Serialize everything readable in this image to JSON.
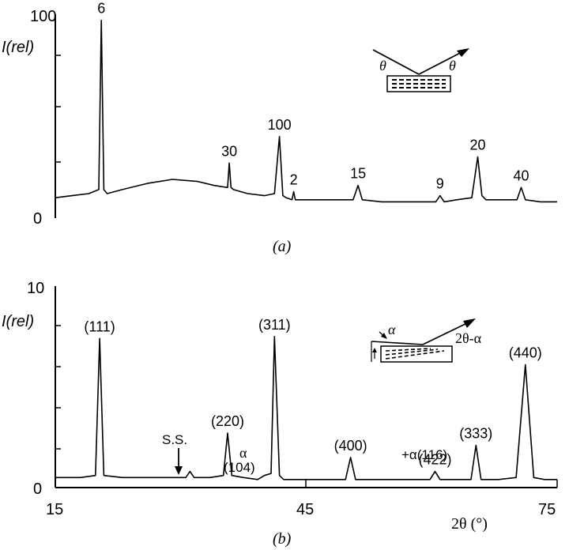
{
  "chart_data": [
    {
      "type": "line",
      "panel_label": "(a)",
      "ylabel": "I(rel)",
      "ylim": [
        0,
        100
      ],
      "y_ticks": [
        "0",
        "100"
      ],
      "xlim": [
        15,
        75
      ],
      "series": [
        {
          "x": [
            15,
            17,
            19,
            20.2,
            20.5,
            20.8,
            21.2,
            23,
            26,
            29,
            32,
            34,
            35.6,
            35.8,
            36,
            36.3,
            38,
            40,
            41.2,
            41.8,
            42.2,
            42.6,
            43.3,
            43.5,
            43.7,
            46,
            49,
            50.6,
            51.2,
            51.7,
            54,
            57,
            60.5,
            61,
            61.5,
            63,
            64.8,
            65.5,
            66,
            66.5,
            68,
            70.2,
            70.7,
            71.2,
            73,
            75
          ],
          "y": [
            10,
            11,
            12,
            14,
            97,
            14,
            12,
            14,
            17,
            19,
            18,
            16,
            15,
            27,
            15,
            14,
            12,
            11,
            12,
            40,
            11,
            10,
            9,
            13,
            9,
            9,
            9,
            9,
            16,
            9,
            8,
            8,
            8,
            11,
            8,
            9,
            10,
            30,
            11,
            9,
            9,
            9,
            15,
            9,
            8,
            8
          ]
        }
      ],
      "peak_labels": [
        {
          "x": 20.5,
          "y": 97,
          "text": "6"
        },
        {
          "x": 35.8,
          "y": 27,
          "text": "30"
        },
        {
          "x": 41.8,
          "y": 40,
          "text": "100"
        },
        {
          "x": 43.5,
          "y": 13,
          "text": "2"
        },
        {
          "x": 51.2,
          "y": 16,
          "text": "15"
        },
        {
          "x": 61,
          "y": 11,
          "text": "9"
        },
        {
          "x": 65.5,
          "y": 30,
          "text": "20"
        },
        {
          "x": 70.7,
          "y": 15,
          "text": "40"
        }
      ],
      "inset_labels": [
        "θ",
        "θ"
      ]
    },
    {
      "type": "line",
      "panel_label": "(b)",
      "ylabel": "I(rel)",
      "xlabel": "2θ (°)",
      "ylim": [
        0,
        10
      ],
      "y_ticks": [
        "0",
        "10"
      ],
      "xlim": [
        15,
        75
      ],
      "x_ticks": [
        "15",
        "45",
        "75"
      ],
      "series": [
        {
          "x": [
            15,
            18,
            19.8,
            20.3,
            20.8,
            23,
            27,
            29,
            30.6,
            31.1,
            31.6,
            33.5,
            35.1,
            35.6,
            36.1,
            37.5,
            39.2,
            40,
            40.8,
            41.2,
            41.8,
            42.3,
            44,
            47,
            49.7,
            50.3,
            50.9,
            53,
            57,
            59.8,
            60.4,
            61,
            63,
            64.7,
            65.3,
            65.9,
            68,
            70.1,
            71.2,
            72.2,
            73.5,
            75
          ],
          "y": [
            0.5,
            0.5,
            0.6,
            7.4,
            0.6,
            0.5,
            0.5,
            0.5,
            0.5,
            0.8,
            0.5,
            0.5,
            0.6,
            2.7,
            0.6,
            0.5,
            0.4,
            0.6,
            0.7,
            7.5,
            0.6,
            0.4,
            0.4,
            0.4,
            0.4,
            1.5,
            0.4,
            0.4,
            0.4,
            0.4,
            0.8,
            0.4,
            0.4,
            0.4,
            2.1,
            0.4,
            0.4,
            0.5,
            6.1,
            0.5,
            0.4,
            0.4
          ]
        }
      ],
      "peak_labels": [
        {
          "x": 20.3,
          "y": 7.4,
          "text": "(111)"
        },
        {
          "x": 35.6,
          "y": 2.7,
          "text": "(220)"
        },
        {
          "x": 41.2,
          "y": 7.5,
          "text": "(311)"
        },
        {
          "x": 50.3,
          "y": 1.5,
          "text": "(400)"
        },
        {
          "x": 60.4,
          "y": 0.8,
          "text": "(422)"
        },
        {
          "x": 65.3,
          "y": 2.1,
          "text": "(333)"
        },
        {
          "x": 71.2,
          "y": 6.1,
          "text": "(440)"
        }
      ],
      "annotations": [
        {
          "text": "S.S.",
          "x": 31.1
        },
        {
          "text": "α",
          "x": 40
        },
        {
          "text": "(104)",
          "x": 40
        },
        {
          "text": "+α(116)",
          "x": 60.4
        }
      ],
      "inset_labels": [
        "α",
        "2θ-α"
      ]
    }
  ]
}
